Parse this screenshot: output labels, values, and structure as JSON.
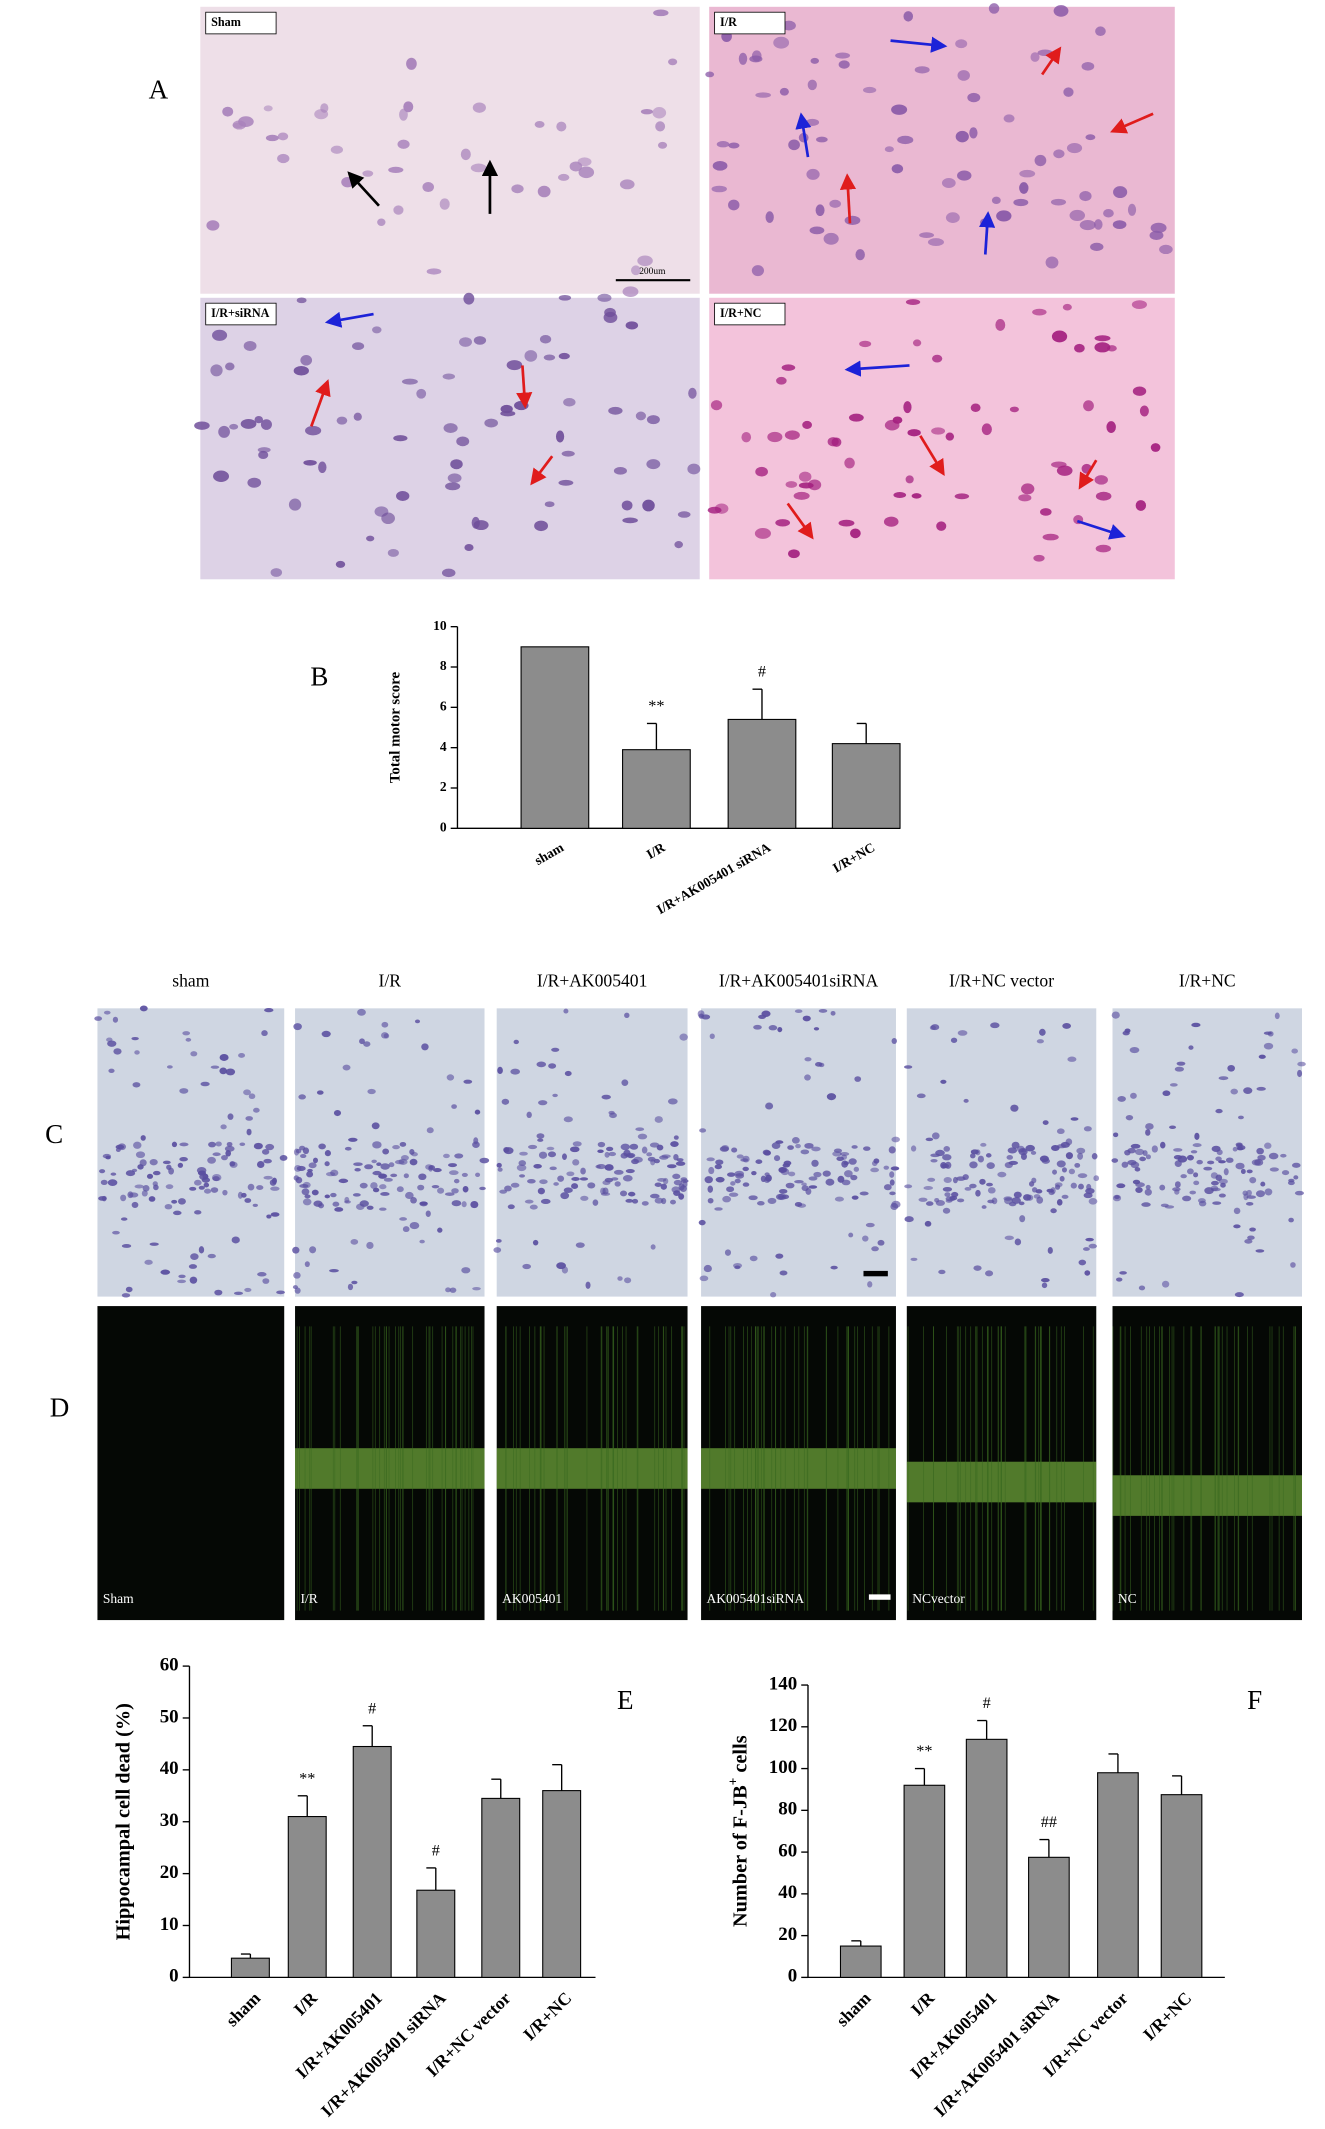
{
  "panels": {
    "A": {
      "letter": "A",
      "labels": [
        "Sham",
        "I/R",
        "I/R+siRNA",
        "I/R+NC"
      ],
      "scale": "200um"
    },
    "C": {
      "letter": "C",
      "labels": [
        "sham",
        "I/R",
        "I/R+AK005401",
        "I/R+AK005401siRNA",
        "I/R+NC vector",
        "I/R+NC"
      ]
    },
    "D": {
      "letter": "D",
      "labels": [
        "Sham",
        "I/R",
        "AK005401",
        "AK005401siRNA",
        "NCvector",
        "NC"
      ]
    }
  },
  "chart_data": [
    {
      "type": "bar",
      "panel": "B",
      "ylabel": [
        "Total motor score"
      ],
      "categories": [
        "sham",
        "I/R",
        "I/R+AK005401 siRNA",
        "I/R+NC"
      ],
      "values": [
        9,
        3.9,
        5.4,
        4.2
      ],
      "errors": [
        0,
        1.3,
        1.5,
        1.0
      ],
      "annotations": [
        null,
        "**",
        "#",
        null
      ],
      "color": "#8c8c8c",
      "ylim": [
        0,
        10
      ],
      "yticks": [
        0,
        2,
        4,
        6,
        8,
        10
      ]
    },
    {
      "type": "bar",
      "panel": "E",
      "ylabel": [
        "Hippocampal cell dead (%)"
      ],
      "categories": [
        "sham",
        "I/R",
        "I/R+AK005401",
        "I/R+AK005401 siRNA",
        "I/R+NC vector",
        "I/R+NC"
      ],
      "values": [
        3.7,
        31,
        44.5,
        16.8,
        34.5,
        36
      ],
      "errors": [
        0.8,
        4,
        4,
        4.3,
        3.7,
        5
      ],
      "annotations": [
        null,
        "**",
        "#",
        "#",
        null,
        null
      ],
      "color": "#8c8c8c",
      "ylim": [
        0,
        60
      ],
      "yticks": [
        0,
        10,
        20,
        30,
        40,
        50,
        60
      ]
    },
    {
      "type": "bar",
      "panel": "F",
      "ylabel": [
        "Number of F-JB",
        "+",
        " cells"
      ],
      "categories": [
        "sham",
        "I/R",
        "I/R+AK005401",
        "I/R+AK005401 siRNA",
        "I/R+NC vector",
        "I/R+NC"
      ],
      "values": [
        15,
        92,
        114,
        57.5,
        98,
        87.5
      ],
      "errors": [
        2.5,
        8,
        9,
        8.5,
        9,
        9
      ],
      "annotations": [
        null,
        "**",
        "#",
        "##",
        null,
        null
      ],
      "color": "#8c8c8c",
      "ylim": [
        0,
        140
      ],
      "yticks": [
        0,
        20,
        40,
        60,
        80,
        100,
        120,
        140
      ]
    }
  ]
}
